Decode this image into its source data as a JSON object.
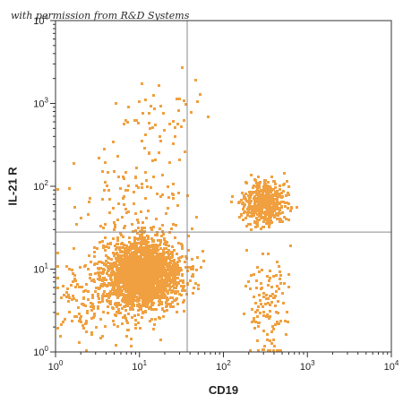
{
  "watermark": "with permission from R&D Systems",
  "chart_data": {
    "type": "scatter",
    "subtype": "flow-cytometry dot plot",
    "xlabel": "CD19",
    "ylabel": "IL-21 R",
    "x_scale": "log",
    "y_scale": "log",
    "xlim": [
      1,
      10000
    ],
    "ylim": [
      1,
      10000
    ],
    "x_ticks": [
      {
        "base": "10",
        "exp": "0"
      },
      {
        "base": "10",
        "exp": "1"
      },
      {
        "base": "10",
        "exp": "2"
      },
      {
        "base": "10",
        "exp": "3"
      },
      {
        "base": "10",
        "exp": "4"
      }
    ],
    "y_ticks": [
      {
        "base": "10",
        "exp": "0"
      },
      {
        "base": "10",
        "exp": "1"
      },
      {
        "base": "10",
        "exp": "2"
      },
      {
        "base": "10",
        "exp": "3"
      },
      {
        "base": "10",
        "exp": "4"
      }
    ],
    "quadrant_gates": {
      "x": 37,
      "y": 28
    },
    "point_color": "#f0a040",
    "gate_color": "#8a8a8a",
    "populations": [
      {
        "name": "",
        "center": [
          11,
          9
        ],
        "spread_decades": [
          0.22,
          0.2
        ],
        "count": 2200
      },
      {
        "name": "",
        "center": [
          300,
          65
        ],
        "spread_decades": [
          0.12,
          0.13
        ],
        "count": 500
      },
      {
        "name": "",
        "center": [
          320,
          4
        ],
        "spread_decades": [
          0.12,
          0.35
        ],
        "count": 120
      },
      {
        "name": "",
        "center": [
          9,
          60
        ],
        "spread_decades": [
          0.35,
          0.4
        ],
        "count": 140
      },
      {
        "name": "",
        "center": [
          15,
          700
        ],
        "spread_decades": [
          0.25,
          0.2
        ],
        "count": 45
      },
      {
        "name": "",
        "center": [
          4,
          5
        ],
        "spread_decades": [
          0.3,
          0.25
        ],
        "count": 250
      }
    ]
  }
}
